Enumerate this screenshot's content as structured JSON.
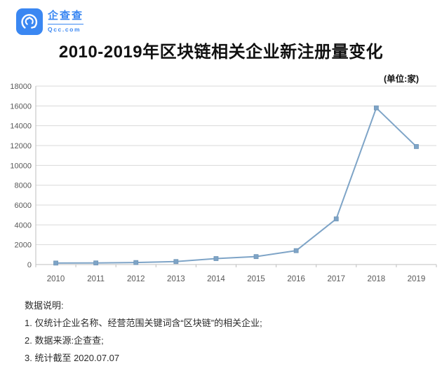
{
  "brand": {
    "name": "企查查",
    "domain": "Qcc.com",
    "logo_color": "#3a87f2"
  },
  "title": "2010-2019年区块链相关企业新注册量变化",
  "unit_label": "(单位:家)",
  "chart_data": {
    "type": "line",
    "title": "2010-2019年区块链相关企业新注册量变化",
    "unit": "家",
    "categories": [
      "2010",
      "2011",
      "2012",
      "2013",
      "2014",
      "2015",
      "2016",
      "2017",
      "2018",
      "2019"
    ],
    "values": [
      150,
      160,
      200,
      300,
      600,
      800,
      1400,
      4600,
      15800,
      11900
    ],
    "xlabel": "",
    "ylabel": "",
    "ylim": [
      0,
      18000
    ],
    "ytick_step": 2000,
    "grid": true,
    "legend": false,
    "marker": "square",
    "line_color": "#7ea4c7",
    "marker_color": "#7ea4c7",
    "marker_edge_color": "#6e94b5",
    "grid_color": "#d9d9d9",
    "axis_color": "#bfbfbf",
    "tick_label_color": "#595959"
  },
  "notes": {
    "heading": "数据说明:",
    "items": [
      "1. 仅统计企业名称、经营范围关键词含“区块链”的相关企业;",
      "2. 数据来源:企查查;",
      "3. 统计截至 2020.07.07"
    ]
  }
}
